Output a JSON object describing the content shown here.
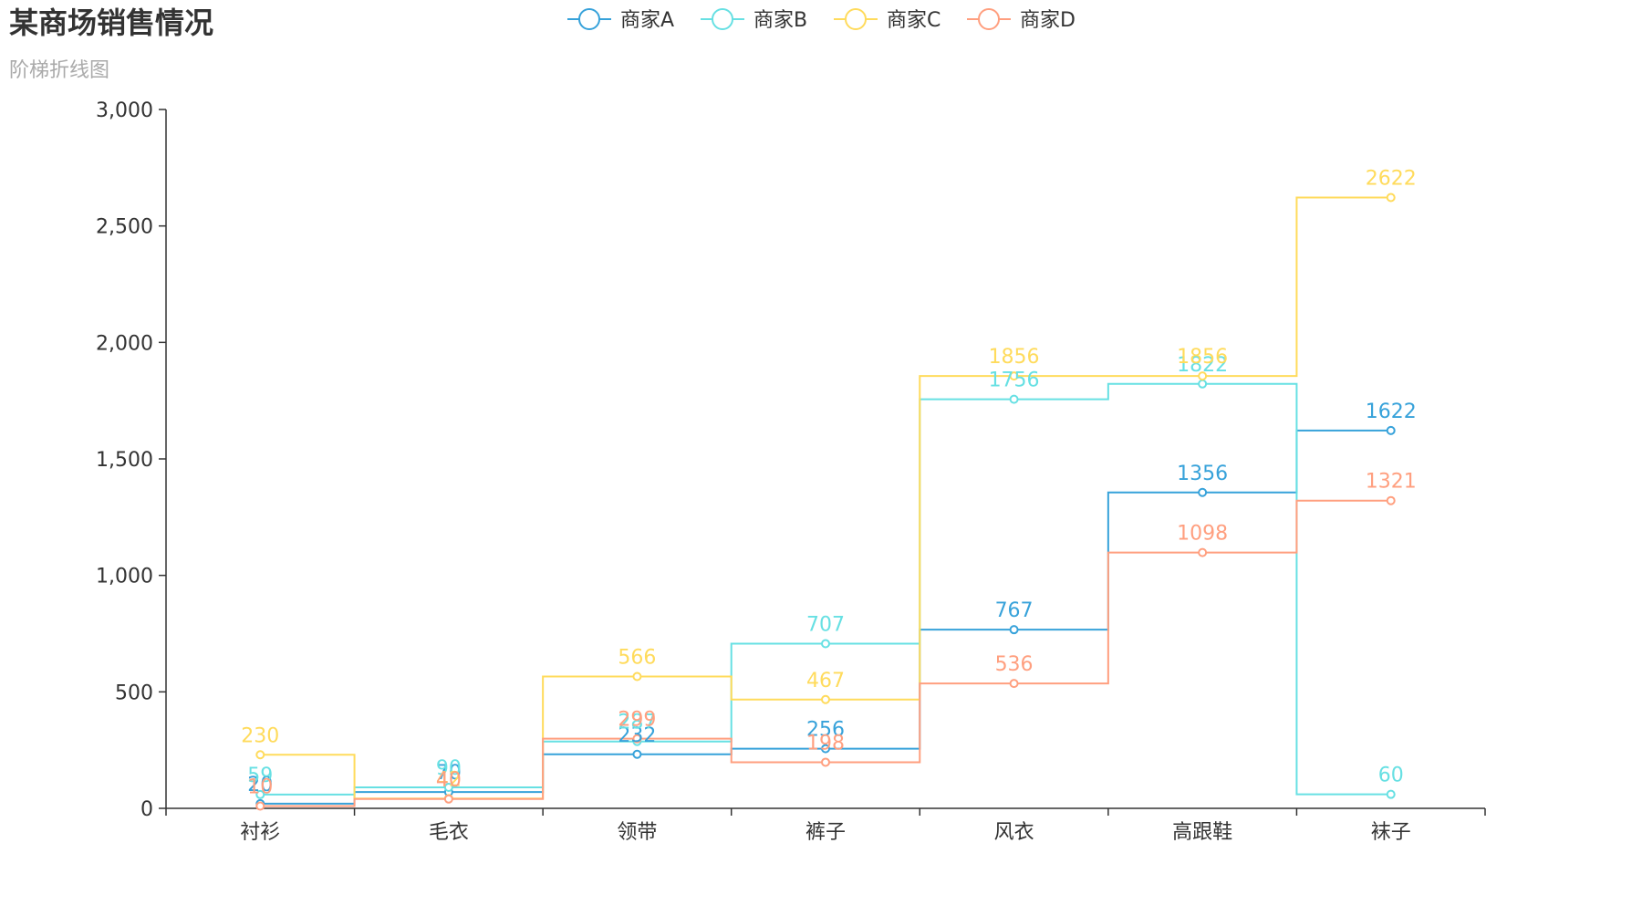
{
  "chart_data": {
    "type": "line",
    "step": "middle",
    "title": "某商场销售情况",
    "subtitle": "阶梯折线图",
    "categories": [
      "衬衫",
      "毛衣",
      "领带",
      "裤子",
      "风衣",
      "高跟鞋",
      "袜子"
    ],
    "ylim": [
      0,
      3000
    ],
    "yticks": [
      0,
      500,
      1000,
      1500,
      2000,
      2500,
      3000
    ],
    "ytick_labels": [
      "0",
      "500",
      "1,000",
      "1,500",
      "2,000",
      "2,500",
      "3,000"
    ],
    "grid": false,
    "legend_position": "top-center",
    "series": [
      {
        "name": "商家A",
        "color": "#37a2da",
        "values": [
          20,
          70,
          232,
          256,
          767,
          1356,
          1622
        ]
      },
      {
        "name": "商家B",
        "color": "#67e0e3",
        "values": [
          59,
          90,
          287,
          707,
          1756,
          1822,
          60
        ]
      },
      {
        "name": "商家C",
        "color": "#ffdb5c",
        "values": [
          230,
          42,
          566,
          467,
          1856,
          1856,
          2622
        ]
      },
      {
        "name": "商家D",
        "color": "#ff9f7f",
        "values": [
          10,
          40,
          299,
          198,
          536,
          1098,
          1321
        ]
      }
    ]
  }
}
